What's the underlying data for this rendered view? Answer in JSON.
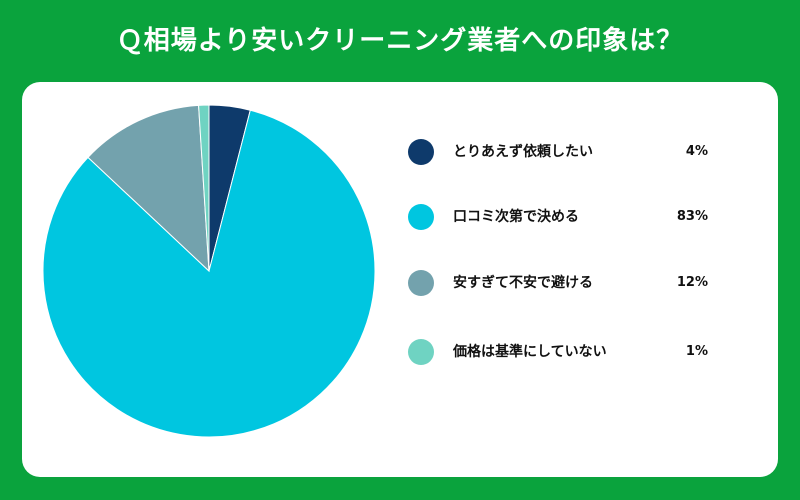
{
  "title": "Ｑ相場より安いクリーニング業者への印象は？",
  "colors": {
    "background": "#0aa33d",
    "card": "#ffffff"
  },
  "chart_data": {
    "type": "pie",
    "title": "Ｑ相場より安いクリーニング業者への印象は？",
    "legend_position": "right",
    "slices": [
      {
        "label": "とりあえず依頼したい",
        "value": 4,
        "display": "4%",
        "color": "#0e3a6b"
      },
      {
        "label": "口コミ次第で決める",
        "value": 83,
        "display": "83%",
        "color": "#00c6e0"
      },
      {
        "label": "安すぎて不安で避ける",
        "value": 12,
        "display": "12%",
        "color": "#73a2ad"
      },
      {
        "label": "価格は基準にしていない",
        "value": 1,
        "display": "1%",
        "color": "#6fd3c2"
      }
    ]
  }
}
